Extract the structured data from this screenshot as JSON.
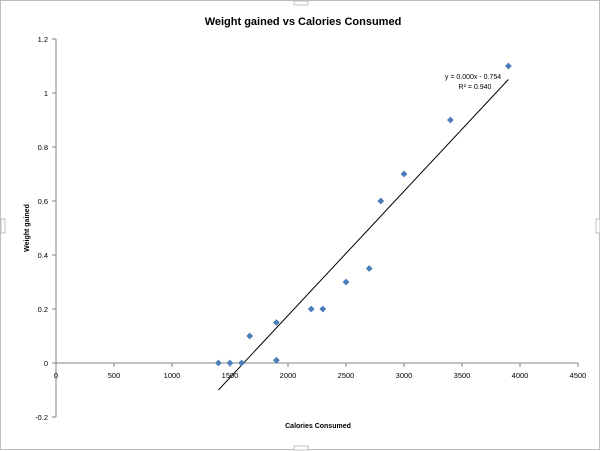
{
  "chart_data": {
    "type": "scatter",
    "title": "Weight gained vs Calories Consumed",
    "xlabel": "Calories Consumed",
    "ylabel": "Weight gained",
    "xlim": [
      0,
      4500
    ],
    "ylim": [
      -0.2,
      1.2
    ],
    "x_ticks": [
      0,
      500,
      1000,
      1500,
      2000,
      2500,
      3000,
      3500,
      4000,
      4500
    ],
    "y_ticks": [
      -0.2,
      0,
      0.2,
      0.4,
      0.6,
      0.8,
      1,
      1.2
    ],
    "x_tick_labels": [
      "0",
      "500",
      "1000",
      "1500",
      "2000",
      "2500",
      "3000",
      "3500",
      "4000",
      "4500"
    ],
    "y_tick_labels": [
      "-0.2",
      "0",
      "0.2",
      "0.4",
      "0.6",
      "0.8",
      "1",
      "1.2"
    ],
    "grid": false,
    "legend": "none",
    "marker": "diamond",
    "marker_color": "#4a7ebb",
    "series": [
      {
        "points": [
          [
            1400,
            0
          ],
          [
            1500,
            0
          ],
          [
            1600,
            0
          ],
          [
            1670,
            0.1
          ],
          [
            1900,
            0.15
          ],
          [
            1900,
            0.01
          ],
          [
            2200,
            0.2
          ],
          [
            2300,
            0.2
          ],
          [
            2500,
            0.3
          ],
          [
            2700,
            0.35
          ],
          [
            2800,
            0.6
          ],
          [
            3000,
            0.7
          ],
          [
            3400,
            0.9
          ],
          [
            3900,
            1.1
          ]
        ]
      }
    ],
    "trendline": {
      "type": "linear",
      "x_range": [
        1400,
        3900
      ],
      "y_range": [
        -0.1,
        1.05
      ],
      "equation": "y = 0.000x - 0.754",
      "r_squared": "R² = 0.940"
    }
  }
}
